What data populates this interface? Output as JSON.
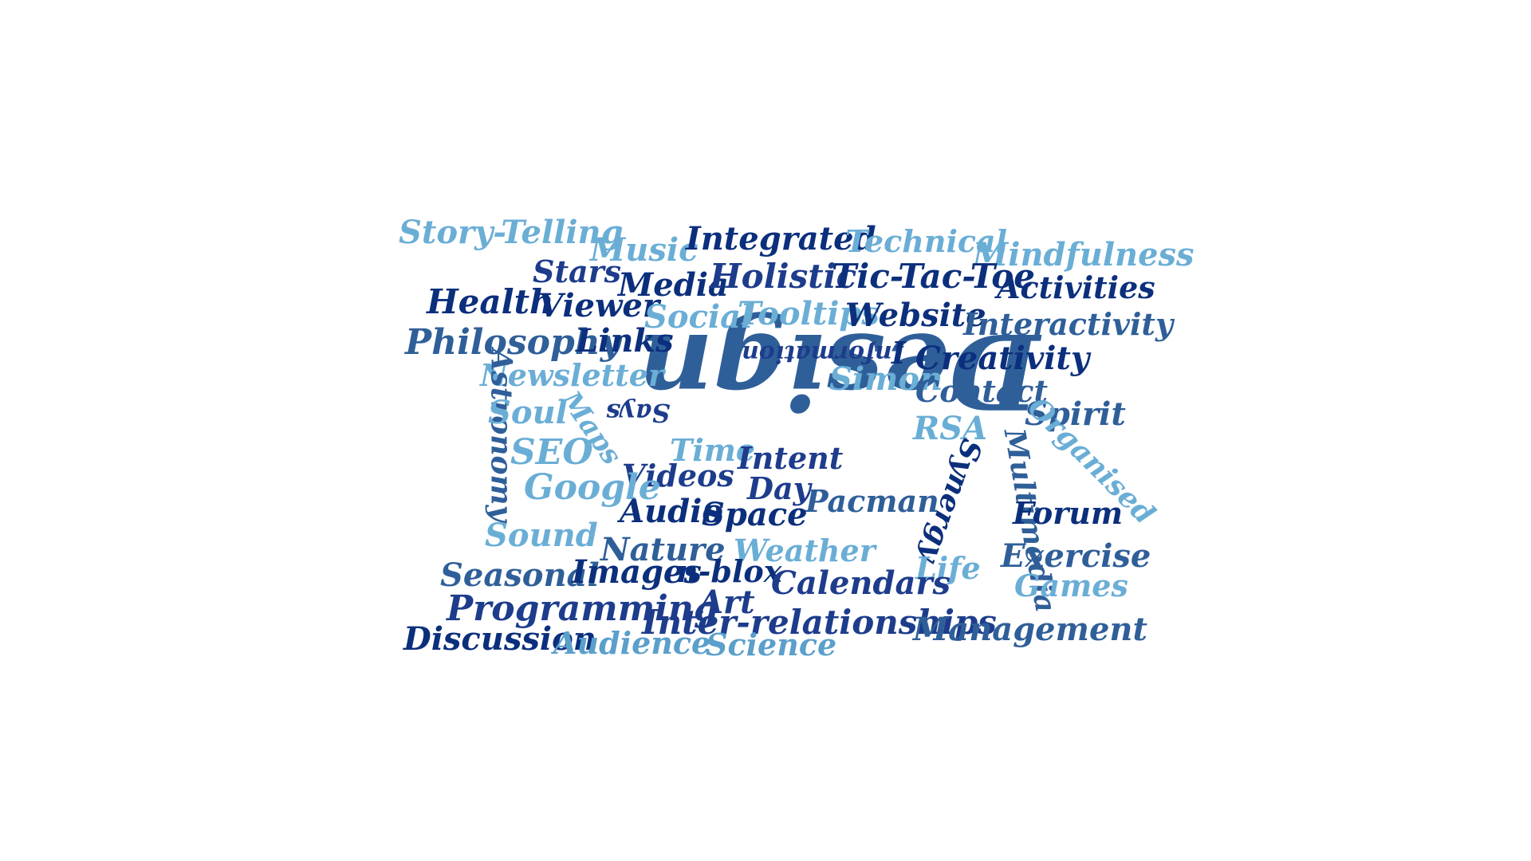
{
  "colors": {
    "background": "#ffffff",
    "navy": "#0b2f7c",
    "dark_blue": "#1d3c8c",
    "mid_blue": "#2f5f99",
    "light_blue": "#5b9fcb",
    "sky_blue": "#6aaed6"
  },
  "words": [
    {
      "text": "Design",
      "color": "#2f5f99",
      "weight": "max",
      "orientation": "upside-down"
    },
    {
      "text": "Story-Telling",
      "color": "#6aaed6",
      "orientation": "horizontal"
    },
    {
      "text": "Music",
      "color": "#6aaed6",
      "orientation": "horizontal"
    },
    {
      "text": "Integrated",
      "color": "#0b2f7c",
      "orientation": "horizontal"
    },
    {
      "text": "Technical",
      "color": "#6aaed6",
      "orientation": "horizontal"
    },
    {
      "text": "Mindfulness",
      "color": "#6aaed6",
      "orientation": "horizontal"
    },
    {
      "text": "Stars",
      "color": "#1d3c8c",
      "orientation": "horizontal"
    },
    {
      "text": "Media",
      "color": "#0b2f7c",
      "orientation": "horizontal"
    },
    {
      "text": "Holistic",
      "color": "#1d3c8c",
      "orientation": "horizontal"
    },
    {
      "text": "Tic-Tac-Toe",
      "color": "#0b2f7c",
      "orientation": "horizontal"
    },
    {
      "text": "Activities",
      "color": "#0b2f7c",
      "orientation": "horizontal"
    },
    {
      "text": "Health",
      "color": "#0b2f7c",
      "orientation": "horizontal"
    },
    {
      "text": "Viewer",
      "color": "#0b2f7c",
      "orientation": "horizontal"
    },
    {
      "text": "Social",
      "color": "#6aaed6",
      "orientation": "horizontal"
    },
    {
      "text": "Tooltips",
      "color": "#6aaed6",
      "orientation": "horizontal"
    },
    {
      "text": "Website",
      "color": "#0b2f7c",
      "orientation": "horizontal"
    },
    {
      "text": "Interactivity",
      "color": "#2f5f99",
      "orientation": "horizontal"
    },
    {
      "text": "Philosophy",
      "color": "#2f5f99",
      "orientation": "horizontal"
    },
    {
      "text": "Links",
      "color": "#0b2f7c",
      "orientation": "horizontal"
    },
    {
      "text": "Information",
      "color": "#1d3c8c",
      "orientation": "upside-down"
    },
    {
      "text": "I",
      "color": "#0b2f7c",
      "orientation": "horizontal"
    },
    {
      "text": "Creativity",
      "color": "#0b2f7c",
      "orientation": "horizontal"
    },
    {
      "text": "Newsletter",
      "color": "#6aaed6",
      "orientation": "horizontal"
    },
    {
      "text": "Simon",
      "color": "#6aaed6",
      "orientation": "horizontal"
    },
    {
      "text": "Contact",
      "color": "#2f5f99",
      "orientation": "horizontal"
    },
    {
      "text": "Astronomy",
      "color": "#2f5f99",
      "orientation": "vertical"
    },
    {
      "text": "Soul",
      "color": "#6aaed6",
      "orientation": "horizontal"
    },
    {
      "text": "Maps",
      "color": "#6aaed6",
      "orientation": "diagonal"
    },
    {
      "text": "Says",
      "color": "#1d3c8c",
      "orientation": "upside-down"
    },
    {
      "text": "RSA",
      "color": "#6aaed6",
      "orientation": "horizontal"
    },
    {
      "text": "Spirit",
      "color": "#2f5f99",
      "orientation": "horizontal"
    },
    {
      "text": "Organised",
      "color": "#6aaed6",
      "orientation": "diagonal"
    },
    {
      "text": "SEO",
      "color": "#6aaed6",
      "orientation": "horizontal"
    },
    {
      "text": "Time",
      "color": "#6aaed6",
      "orientation": "horizontal"
    },
    {
      "text": "Intent",
      "color": "#1d3c8c",
      "orientation": "horizontal"
    },
    {
      "text": "Synergy",
      "color": "#0b2f7c",
      "orientation": "diagonal"
    },
    {
      "text": "Multimedia",
      "color": "#2f5f99",
      "orientation": "vertical"
    },
    {
      "text": "Videos",
      "color": "#1d3c8c",
      "orientation": "horizontal"
    },
    {
      "text": "Google",
      "color": "#6aaed6",
      "orientation": "horizontal"
    },
    {
      "text": "Day",
      "color": "#1d3c8c",
      "orientation": "horizontal"
    },
    {
      "text": "Pacman",
      "color": "#2f5f99",
      "orientation": "horizontal"
    },
    {
      "text": "Audio",
      "color": "#0b2f7c",
      "orientation": "horizontal"
    },
    {
      "text": "Space",
      "color": "#0b2f7c",
      "orientation": "horizontal"
    },
    {
      "text": "Forum",
      "color": "#0b2f7c",
      "orientation": "horizontal"
    },
    {
      "text": "Sound",
      "color": "#6aaed6",
      "orientation": "horizontal"
    },
    {
      "text": "Nature",
      "color": "#2f5f99",
      "orientation": "horizontal"
    },
    {
      "text": "Weather",
      "color": "#6aaed6",
      "orientation": "horizontal"
    },
    {
      "text": "Exercise",
      "color": "#2f5f99",
      "orientation": "horizontal"
    },
    {
      "text": "Life",
      "color": "#6aaed6",
      "orientation": "horizontal"
    },
    {
      "text": "Seasonal",
      "color": "#2f5f99",
      "orientation": "horizontal"
    },
    {
      "text": "Images",
      "color": "#0b2f7c",
      "orientation": "horizontal"
    },
    {
      "text": "n-blox",
      "color": "#0b2f7c",
      "orientation": "horizontal"
    },
    {
      "text": "Calendars",
      "color": "#1d3c8c",
      "orientation": "horizontal"
    },
    {
      "text": "Games",
      "color": "#6aaed6",
      "orientation": "horizontal"
    },
    {
      "text": "Programming",
      "color": "#1d3c8c",
      "orientation": "horizontal"
    },
    {
      "text": "Art",
      "color": "#1d3c8c",
      "orientation": "horizontal"
    },
    {
      "text": "Inter-relationships",
      "color": "#1d3c8c",
      "orientation": "horizontal"
    },
    {
      "text": "Management",
      "color": "#2f5f99",
      "orientation": "horizontal"
    },
    {
      "text": "Discussion",
      "color": "#0b2f7c",
      "orientation": "horizontal"
    },
    {
      "text": "Audience",
      "color": "#5b9fcb",
      "orientation": "horizontal"
    },
    {
      "text": "Science",
      "color": "#5b9fcb",
      "orientation": "horizontal"
    }
  ]
}
